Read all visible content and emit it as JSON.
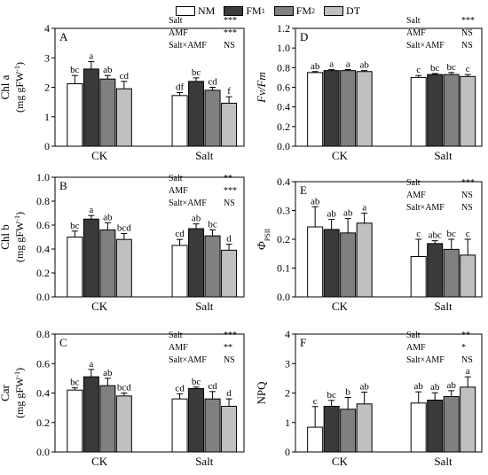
{
  "legend": {
    "items": [
      {
        "label": "NM",
        "sub": "",
        "color": "#ffffff"
      },
      {
        "label": "FM",
        "sub": "1",
        "color": "#3a3a3a"
      },
      {
        "label": "FM",
        "sub": "2",
        "color": "#808080"
      },
      {
        "label": "DT",
        "sub": "",
        "color": "#c0c0c0"
      }
    ]
  },
  "chart_data": [
    {
      "type": "bar",
      "panel": "A",
      "categories": [
        "CK",
        "Salt"
      ],
      "ylabel": "Chl a",
      "ylabel_unit": "(mg gFW",
      "ylabel_sup": "-1",
      "ylabel_tail": ")",
      "ylim": [
        0,
        4
      ],
      "yticks": [
        "0",
        "1",
        "2",
        "3",
        "4"
      ],
      "series": [
        {
          "values": [
            2.12,
            1.72
          ],
          "errors": [
            0.28,
            0.1
          ],
          "letters": [
            "bc",
            "df"
          ]
        },
        {
          "values": [
            2.62,
            2.2
          ],
          "errors": [
            0.25,
            0.12
          ],
          "letters": [
            "a",
            "bc"
          ]
        },
        {
          "values": [
            2.28,
            1.9
          ],
          "errors": [
            0.12,
            0.1
          ],
          "letters": [
            "ab",
            "cd"
          ]
        },
        {
          "values": [
            1.95,
            1.46
          ],
          "errors": [
            0.25,
            0.22
          ],
          "letters": [
            "cd",
            "f"
          ]
        }
      ],
      "stats": [
        [
          "Salt",
          "***"
        ],
        [
          "AMF",
          "***"
        ],
        [
          "Salt×AMF",
          "NS"
        ]
      ]
    },
    {
      "type": "bar",
      "panel": "D",
      "categories": [
        "CK",
        "Salt"
      ],
      "ylabel": "Fv/Fm",
      "ylabel_unit": "",
      "ylabel_sup": "",
      "ylabel_tail": "",
      "ylim": [
        0,
        1.2
      ],
      "yticks": [
        "0.0",
        "0.2",
        "0.4",
        "0.6",
        "0.8",
        "1.0",
        "1.2"
      ],
      "series": [
        {
          "values": [
            0.75,
            0.7
          ],
          "errors": [
            0.01,
            0.02
          ],
          "letters": [
            "ab",
            "c"
          ]
        },
        {
          "values": [
            0.77,
            0.73
          ],
          "errors": [
            0.01,
            0.01
          ],
          "letters": [
            "a",
            "bc"
          ]
        },
        {
          "values": [
            0.77,
            0.73
          ],
          "errors": [
            0.01,
            0.02
          ],
          "letters": [
            "a",
            "bc"
          ]
        },
        {
          "values": [
            0.76,
            0.71
          ],
          "errors": [
            0.01,
            0.02
          ],
          "letters": [
            "ab",
            "c"
          ]
        }
      ],
      "stats": [
        [
          "Salt",
          "***"
        ],
        [
          "AMF",
          "NS"
        ],
        [
          "Salt×AMF",
          "NS"
        ]
      ]
    },
    {
      "type": "bar",
      "panel": "B",
      "categories": [
        "CK",
        "Salt"
      ],
      "ylabel": "Chl b",
      "ylabel_unit": "(mg gFW",
      "ylabel_sup": "-1",
      "ylabel_tail": ")",
      "ylim": [
        0,
        1.0
      ],
      "yticks": [
        "0.0",
        "0.2",
        "0.4",
        "0.6",
        "0.8",
        "1.0"
      ],
      "series": [
        {
          "values": [
            0.5,
            0.43
          ],
          "errors": [
            0.05,
            0.05
          ],
          "letters": [
            "bc",
            "cd"
          ]
        },
        {
          "values": [
            0.65,
            0.57
          ],
          "errors": [
            0.03,
            0.04
          ],
          "letters": [
            "a",
            "ab"
          ]
        },
        {
          "values": [
            0.56,
            0.51
          ],
          "errors": [
            0.06,
            0.05
          ],
          "letters": [
            "ab",
            "bc"
          ]
        },
        {
          "values": [
            0.48,
            0.39
          ],
          "errors": [
            0.05,
            0.05
          ],
          "letters": [
            "bcd",
            "d"
          ]
        }
      ],
      "stats": [
        [
          "Salt",
          "**"
        ],
        [
          "AMF",
          "***"
        ],
        [
          "Salt×AMF",
          "NS"
        ]
      ]
    },
    {
      "type": "bar",
      "panel": "E",
      "categories": [
        "CK",
        "Salt"
      ],
      "ylabel": "Φ",
      "ylabel_unit": "",
      "ylabel_sup": "",
      "ylabel_tail": "",
      "ylabel_sub": "PSII",
      "ylim": [
        0,
        0.4
      ],
      "yticks": [
        "0.0",
        "0.1",
        "0.2",
        "0.3",
        "0.4"
      ],
      "series": [
        {
          "values": [
            0.243,
            0.14
          ],
          "errors": [
            0.07,
            0.06
          ],
          "letters": [
            "ab",
            "c"
          ]
        },
        {
          "values": [
            0.234,
            0.185
          ],
          "errors": [
            0.035,
            0.01
          ],
          "letters": [
            "ab",
            "abc"
          ]
        },
        {
          "values": [
            0.222,
            0.165
          ],
          "errors": [
            0.05,
            0.035
          ],
          "letters": [
            "ab",
            "bc"
          ]
        },
        {
          "values": [
            0.256,
            0.145
          ],
          "errors": [
            0.035,
            0.055
          ],
          "letters": [
            "a",
            "c"
          ]
        }
      ],
      "stats": [
        [
          "Salt",
          "***"
        ],
        [
          "AMF",
          "NS"
        ],
        [
          "Salt×AMF",
          "NS"
        ]
      ]
    },
    {
      "type": "bar",
      "panel": "C",
      "categories": [
        "CK",
        "Salt"
      ],
      "ylabel": "Car",
      "ylabel_unit": "(mg gFW",
      "ylabel_sup": "-1",
      "ylabel_tail": ")",
      "ylim": [
        0,
        0.8
      ],
      "yticks": [
        "0.0",
        "0.2",
        "0.4",
        "0.6",
        "0.8"
      ],
      "series": [
        {
          "values": [
            0.42,
            0.36
          ],
          "errors": [
            0.015,
            0.035
          ],
          "letters": [
            "bc",
            "cd"
          ]
        },
        {
          "values": [
            0.51,
            0.43
          ],
          "errors": [
            0.05,
            0.01
          ],
          "letters": [
            "a",
            "bc"
          ]
        },
        {
          "values": [
            0.45,
            0.36
          ],
          "errors": [
            0.05,
            0.05
          ],
          "letters": [
            "ab",
            "cd"
          ]
        },
        {
          "values": [
            0.38,
            0.31
          ],
          "errors": [
            0.02,
            0.05
          ],
          "letters": [
            "bcd",
            "d"
          ]
        }
      ],
      "stats": [
        [
          "Salt",
          "***"
        ],
        [
          "AMF",
          "**"
        ],
        [
          "Salt×AMF",
          "NS"
        ]
      ]
    },
    {
      "type": "bar",
      "panel": "F",
      "categories": [
        "CK",
        "Salt"
      ],
      "ylabel": "NPQ",
      "ylabel_unit": "",
      "ylabel_sup": "",
      "ylabel_tail": "",
      "ylim": [
        0,
        4
      ],
      "yticks": [
        "0",
        "1",
        "2",
        "3",
        "4"
      ],
      "series": [
        {
          "values": [
            0.84,
            1.66
          ],
          "errors": [
            0.7,
            0.38
          ],
          "letters": [
            "c",
            "ab"
          ]
        },
        {
          "values": [
            1.55,
            1.76
          ],
          "errors": [
            0.2,
            0.25
          ],
          "letters": [
            "bc",
            "ab"
          ]
        },
        {
          "values": [
            1.45,
            1.88
          ],
          "errors": [
            0.4,
            0.2
          ],
          "letters": [
            "b",
            "ab"
          ]
        },
        {
          "values": [
            1.63,
            2.2
          ],
          "errors": [
            0.4,
            0.35
          ],
          "letters": [
            "ab",
            "a"
          ]
        }
      ],
      "stats": [
        [
          "Salt",
          "**"
        ],
        [
          "AMF",
          "*"
        ],
        [
          "Salt×AMF",
          "NS"
        ]
      ]
    }
  ]
}
